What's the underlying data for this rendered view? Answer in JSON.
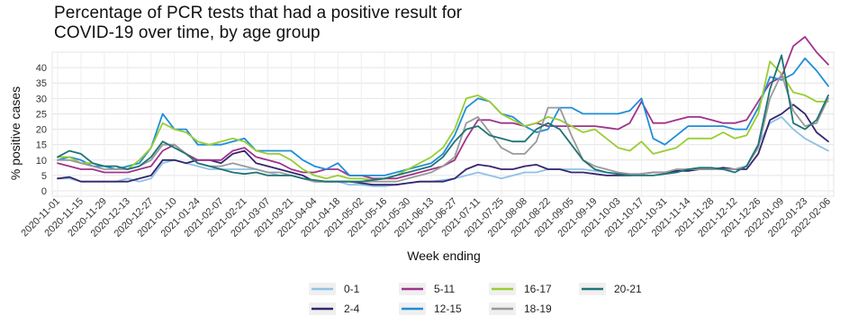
{
  "chart_data": {
    "type": "line",
    "title": [
      "Percentage of PCR tests that had a positive result for",
      "COVID-19 over time, by age group"
    ],
    "xlabel": "Week ending",
    "ylabel": "% positive cases",
    "ylim": [
      0,
      45
    ],
    "yticks": [
      0,
      5,
      10,
      15,
      20,
      25,
      30,
      35,
      40
    ],
    "grid": true,
    "legend_position": "bottom",
    "x": [
      "2020-11-01",
      "2020-11-08",
      "2020-11-15",
      "2020-11-22",
      "2020-11-29",
      "2020-12-06",
      "2020-12-13",
      "2020-12-20",
      "2020-12-27",
      "2021-01-03",
      "2021-01-10",
      "2021-01-17",
      "2021-01-24",
      "2021-01-31",
      "2021-02-07",
      "2021-02-14",
      "2021-02-21",
      "2021-02-28",
      "2021-03-07",
      "2021-03-14",
      "2021-03-21",
      "2021-03-28",
      "2021-04-04",
      "2021-04-11",
      "2021-04-18",
      "2021-04-25",
      "2021-05-02",
      "2021-05-09",
      "2021-05-16",
      "2021-05-23",
      "2021-05-30",
      "2021-06-06",
      "2021-06-13",
      "2021-06-20",
      "2021-06-27",
      "2021-07-04",
      "2021-07-11",
      "2021-07-18",
      "2021-07-25",
      "2021-08-01",
      "2021-08-08",
      "2021-08-15",
      "2021-08-22",
      "2021-08-29",
      "2021-09-05",
      "2021-09-12",
      "2021-09-19",
      "2021-09-26",
      "2021-10-03",
      "2021-10-10",
      "2021-10-17",
      "2021-10-24",
      "2021-10-31",
      "2021-11-07",
      "2021-11-14",
      "2021-11-21",
      "2021-11-28",
      "2021-12-05",
      "2021-12-12",
      "2021-12-19",
      "2021-12-26",
      "2022-01-02",
      "2022-01-09",
      "2022-01-16",
      "2022-01-23",
      "2022-01-30",
      "2022-02-06"
    ],
    "x_tick_labels": [
      "2020-11-01",
      "2020-11-15",
      "2020-11-29",
      "2020-12-13",
      "2020-12-27",
      "2021-01-10",
      "2021-01-24",
      "2021-02-07",
      "2021-02-21",
      "2021-03-07",
      "2021-03-21",
      "2021-04-04",
      "2021-04-18",
      "2021-05-02",
      "2021-05-16",
      "2021-05-30",
      "2021-06-13",
      "2021-06-27",
      "2021-07-11",
      "2021-07-25",
      "2021-08-08",
      "2021-08-22",
      "2021-09-05",
      "2021-09-19",
      "2021-10-03",
      "2021-10-17",
      "2021-10-31",
      "2021-11-14",
      "2021-11-28",
      "2021-12-12",
      "2021-12-26",
      "2022-01-09",
      "2022-01-23",
      "2022-02-06"
    ],
    "series": [
      {
        "name": "0-1",
        "color": "#8ec2e8",
        "values": [
          4,
          4,
          3,
          3,
          3,
          3,
          4,
          3,
          4,
          9,
          10,
          9,
          8,
          7,
          7,
          7,
          7,
          7,
          6,
          5,
          5,
          4,
          3,
          3,
          3,
          2,
          2,
          1.5,
          1.5,
          2,
          2.5,
          3,
          3,
          3.5,
          4,
          5,
          6,
          5,
          4,
          5,
          6,
          6,
          7,
          7,
          7,
          7,
          6.5,
          6,
          5.5,
          5,
          5.5,
          6,
          6,
          6.5,
          7,
          7,
          7,
          7,
          7,
          8,
          15,
          22,
          24,
          20,
          17,
          15,
          13
        ]
      },
      {
        "name": "2-4",
        "color": "#35266e",
        "values": [
          4,
          4.5,
          3,
          3,
          3,
          3,
          3,
          4,
          5,
          10,
          10,
          9,
          10,
          10,
          9,
          12,
          13,
          9,
          8,
          7,
          6,
          5,
          3,
          3,
          3,
          3,
          2.5,
          2,
          2,
          2,
          2.5,
          3,
          3,
          3,
          4,
          7,
          8.5,
          8,
          7,
          7,
          8,
          8.5,
          7,
          7,
          6,
          6,
          5.5,
          5,
          5,
          5,
          5.5,
          6,
          6,
          6.5,
          6.5,
          7,
          7,
          7.5,
          7,
          7,
          12,
          23,
          25,
          28,
          25,
          19,
          16
        ]
      },
      {
        "name": "5-11",
        "color": "#a0328c",
        "values": [
          9,
          8,
          7,
          7,
          6,
          6,
          6,
          7,
          8,
          13,
          15,
          12,
          10,
          10,
          10,
          13,
          14,
          11,
          10,
          9,
          7,
          6,
          6,
          7,
          7,
          5,
          5,
          4,
          4,
          4,
          5,
          6,
          7,
          8,
          10,
          17,
          23,
          23,
          22,
          22,
          21,
          22,
          21,
          21,
          21,
          21,
          21,
          20.5,
          20,
          22,
          29,
          22,
          22,
          23,
          24,
          24,
          23,
          22,
          22,
          23,
          29,
          35,
          37,
          47,
          50,
          45,
          41
        ]
      },
      {
        "name": "12-15",
        "color": "#1f8ed8",
        "values": [
          10,
          11,
          10,
          8,
          8,
          7,
          8,
          9,
          14,
          25,
          20,
          20,
          15,
          15,
          15,
          16,
          17,
          13,
          13,
          13,
          13,
          10,
          8,
          7,
          9,
          5,
          5,
          5,
          5,
          6,
          7,
          8,
          9,
          12,
          18,
          27,
          30,
          29,
          25,
          24,
          21,
          19,
          20,
          27,
          27,
          25,
          25,
          25,
          25,
          26,
          30,
          17,
          15,
          18,
          21,
          21,
          21,
          21,
          20,
          20,
          27,
          37,
          36,
          38,
          43,
          39,
          34
        ]
      },
      {
        "name": "16-17",
        "color": "#9acd32",
        "values": [
          11,
          11,
          9,
          9,
          8,
          8,
          7,
          10,
          14,
          22,
          20,
          19,
          16,
          15,
          16,
          17,
          16,
          13,
          12,
          12,
          10,
          7,
          5,
          4,
          5,
          4,
          4,
          3.5,
          4,
          5,
          7,
          9,
          11,
          14,
          20,
          30,
          31,
          29,
          25,
          23,
          21,
          22,
          24,
          23,
          21,
          19,
          20,
          17,
          14,
          13,
          16,
          12,
          13,
          14,
          17,
          17,
          17,
          19,
          17,
          18,
          25,
          42,
          38,
          32,
          31,
          29,
          29
        ]
      },
      {
        "name": "18-19",
        "color": "#9a9a9a",
        "values": [
          10,
          10,
          9,
          8,
          7,
          7,
          7,
          8,
          10,
          15,
          15,
          12,
          9,
          8,
          8,
          9,
          8,
          7,
          6,
          6,
          5,
          4,
          3,
          3,
          3,
          3,
          3,
          3,
          3,
          3,
          4,
          5,
          6,
          8,
          11,
          22,
          24,
          19,
          14,
          12,
          12,
          16,
          27,
          27,
          18,
          10,
          8,
          7,
          6,
          5.5,
          5.5,
          6,
          6,
          7,
          7,
          7,
          7,
          7,
          7,
          8,
          14,
          30,
          38,
          26,
          21,
          22,
          30
        ]
      },
      {
        "name": "20-21",
        "color": "#1f7475",
        "values": [
          11,
          13,
          12,
          9,
          8,
          8,
          7,
          8,
          11,
          16,
          14,
          12,
          9,
          8,
          7,
          6,
          5.5,
          6,
          5,
          5,
          5,
          4,
          3.5,
          3,
          3,
          3,
          3,
          3.5,
          4,
          5,
          6,
          7,
          8,
          11,
          16,
          20,
          21,
          18,
          17,
          16,
          16,
          20,
          22,
          20,
          15,
          10,
          7,
          6,
          5.5,
          5,
          5,
          5,
          5.5,
          6,
          7,
          7.5,
          7.5,
          7,
          6,
          8,
          15,
          33,
          44,
          22,
          20,
          23,
          31
        ]
      }
    ]
  }
}
